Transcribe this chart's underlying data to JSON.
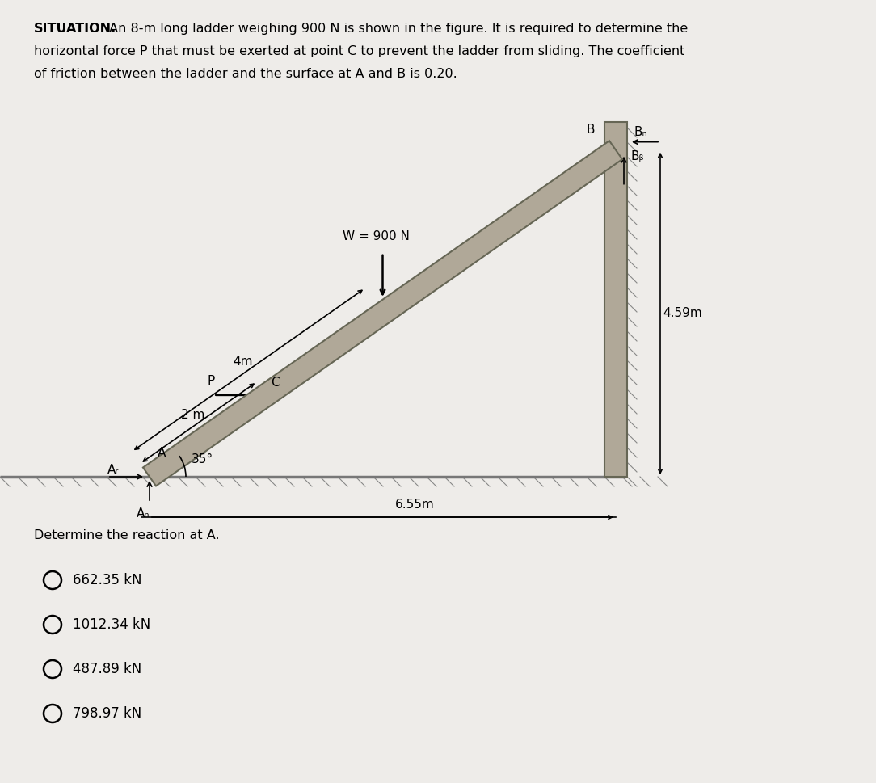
{
  "title_bold": "SITUATION.",
  "title_rest_line1": " An 8-m long ladder weighing 900 N is shown in the figure. It is required to determine the",
  "title_line2": "horizontal force P that must be exerted at point C to prevent the ladder from sliding. The coefficient",
  "title_line3": "of friction between the ladder and the surface at A and B is 0.20.",
  "bg_color": "#eeece9",
  "question": "Determine the reaction at A.",
  "choices": [
    "662.35 kN",
    "1012.34 kN",
    "487.89 kN",
    "798.97 kN"
  ],
  "label_4m": "4m",
  "label_2m": "2 m",
  "label_W": "W = 900 N",
  "label_angle": "35°",
  "label_P": "P",
  "label_C": "C",
  "label_A": "A",
  "label_Af": "Aᵣ",
  "label_AN": "Aₙ",
  "label_B": "B",
  "label_BN": "Bₙ",
  "label_Bf": "Bᵦ",
  "label_459": "4.59m",
  "label_655": "6.55m",
  "ladder_color": "#b0a898",
  "ladder_edge_color": "#666655",
  "wall_color": "#b0a898",
  "wall_edge_color": "#666655",
  "ground_color": "#b0a898"
}
